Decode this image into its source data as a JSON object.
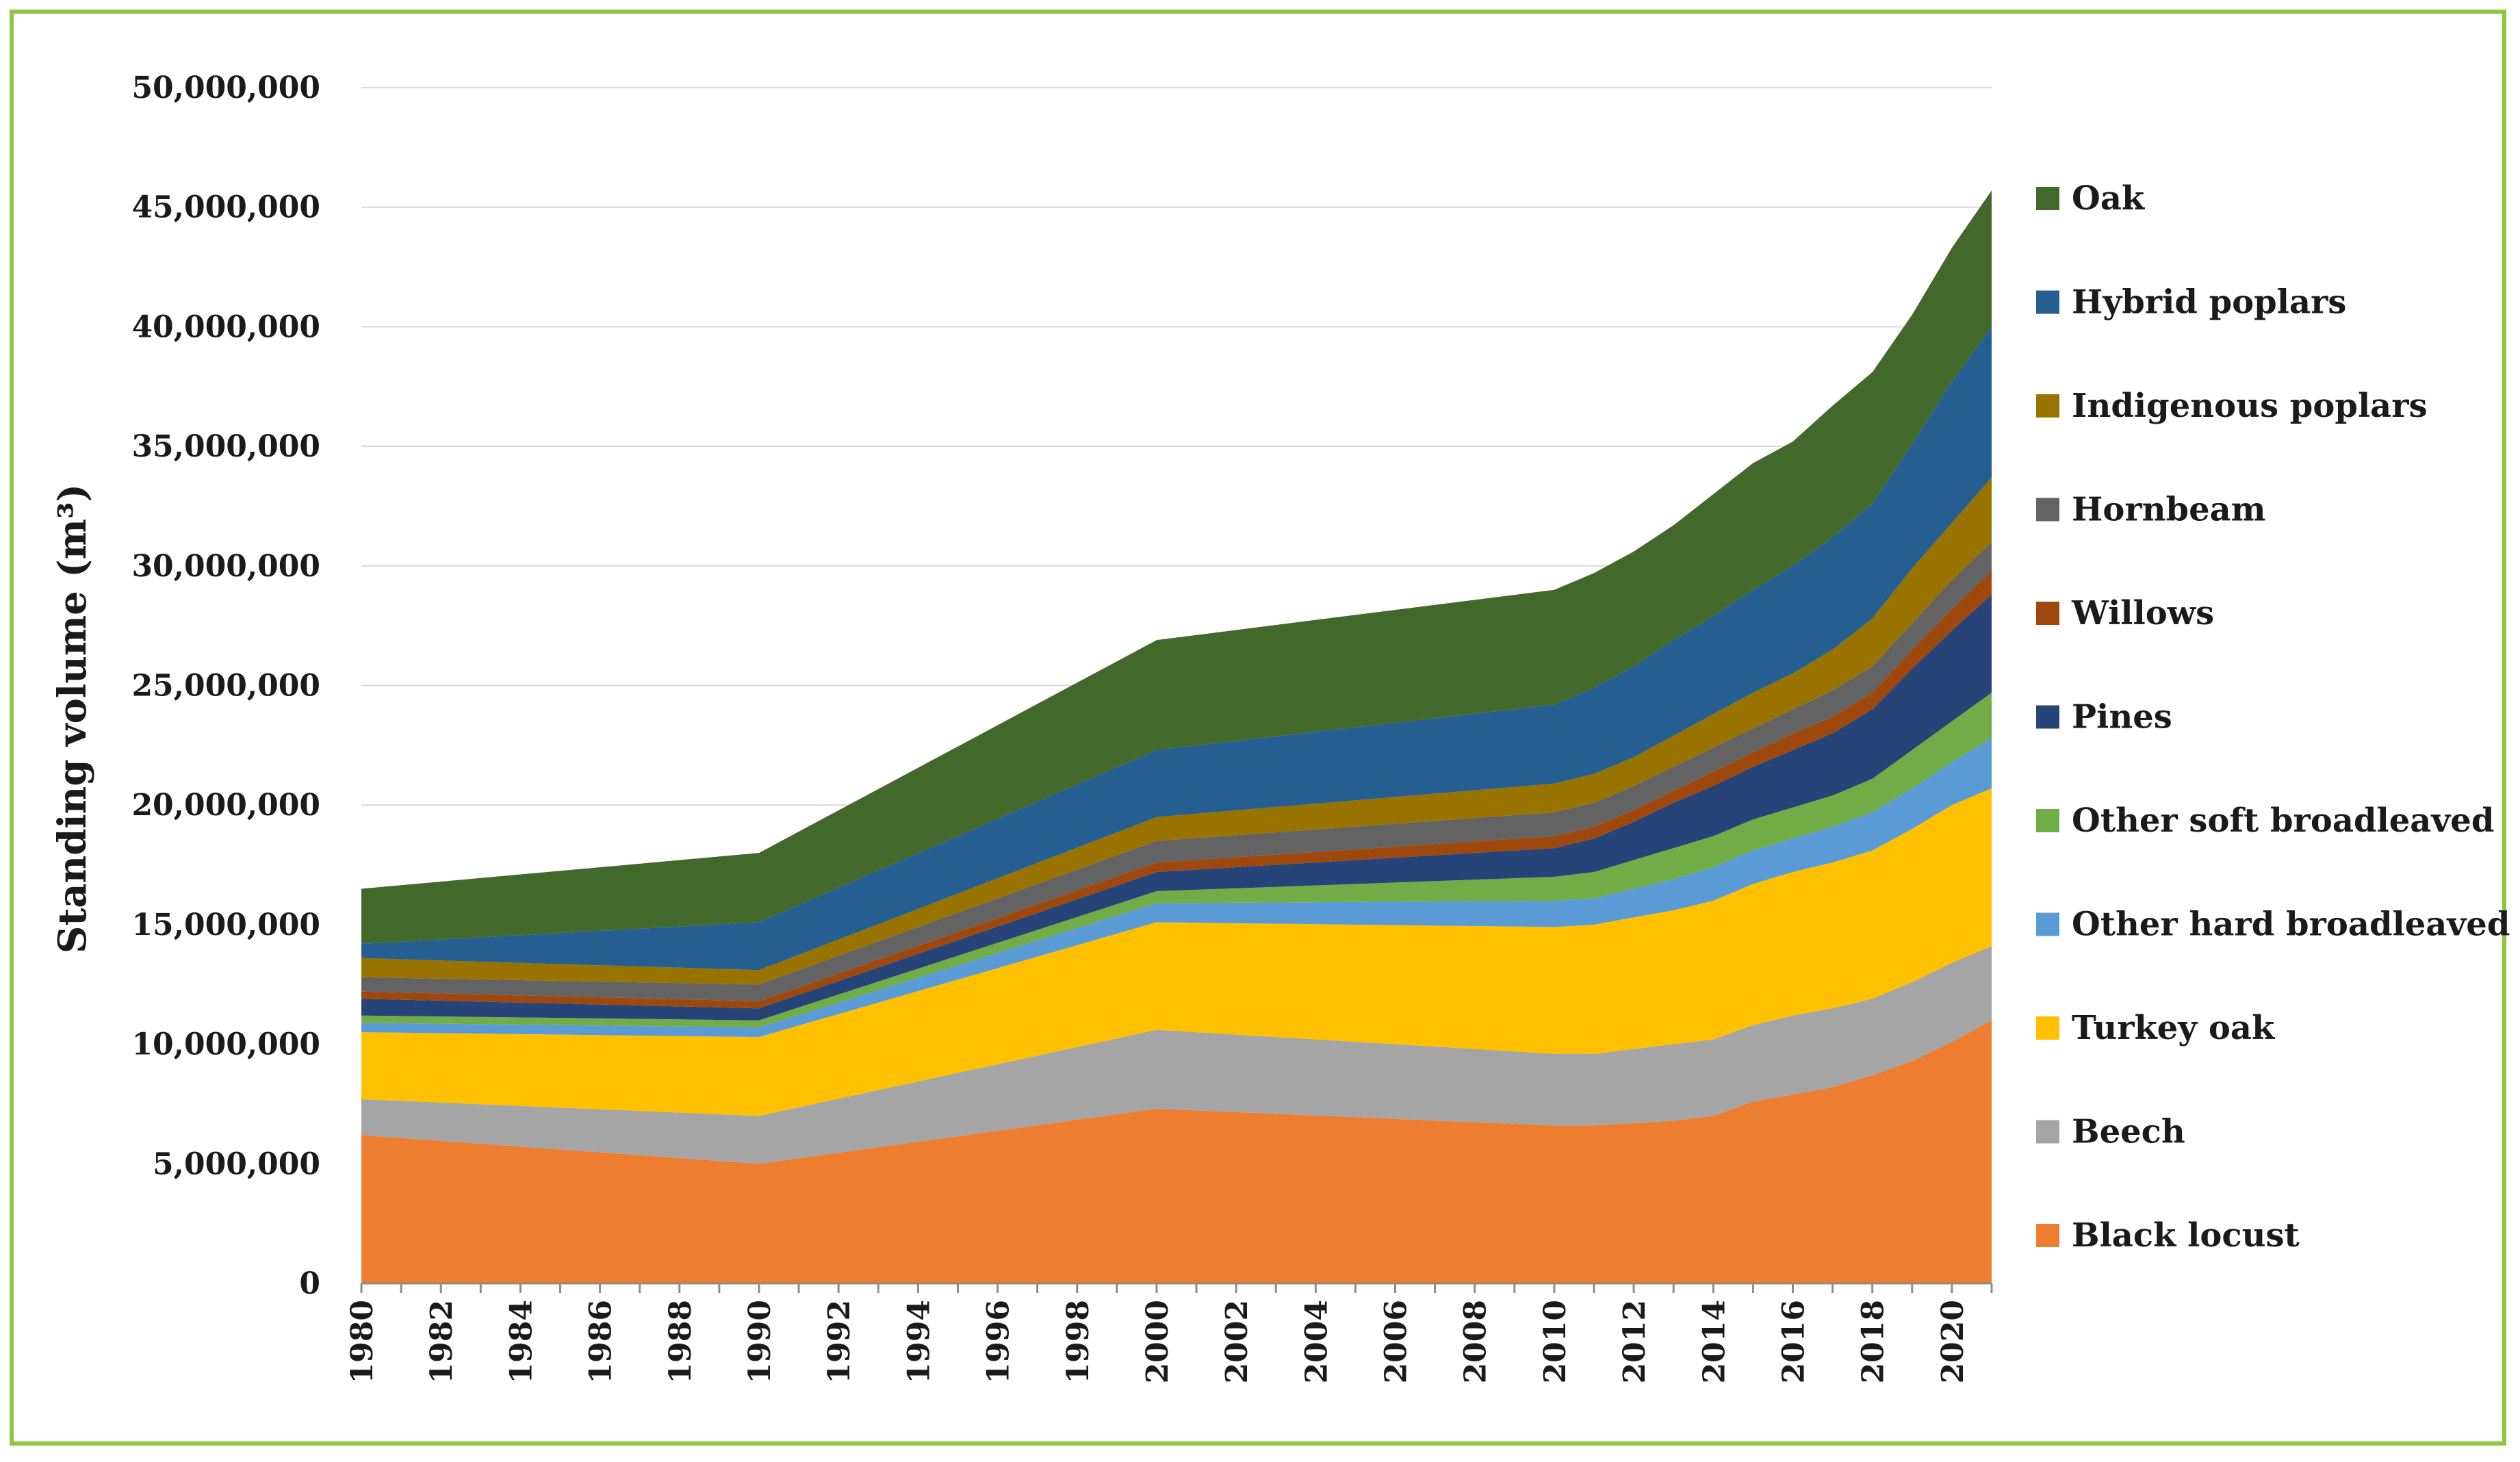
{
  "chart_data": {
    "type": "area",
    "stacked": true,
    "title": "",
    "xlabel": "",
    "ylabel": "Standing volume (m³)",
    "ylim": [
      0,
      50000000
    ],
    "ytick_values": [
      0,
      5000000,
      10000000,
      15000000,
      20000000,
      25000000,
      30000000,
      35000000,
      40000000,
      45000000,
      50000000
    ],
    "ytick_labels": [
      "0",
      "5,000,000",
      "10,000,000",
      "15,000,000",
      "20,000,000",
      "25,000,000",
      "30,000,000",
      "35,000,000",
      "40,000,000",
      "45,000,000",
      "50,000,000"
    ],
    "xtick_labels": [
      "1980",
      "1982",
      "1984",
      "1986",
      "1988",
      "1990",
      "1992",
      "1994",
      "1996",
      "1998",
      "2000",
      "2002",
      "2004",
      "2006",
      "2008",
      "2010",
      "2012",
      "2014",
      "2016",
      "2018",
      "2020"
    ],
    "grid": true,
    "legend_position": "right",
    "x": [
      1980,
      1990,
      2000,
      2010,
      2011,
      2012,
      2013,
      2014,
      2015,
      2016,
      2017,
      2018,
      2019,
      2020,
      2021
    ],
    "series": [
      {
        "name": "Black locust",
        "color": "#ed7d31",
        "values": [
          6200000,
          5000000,
          7300000,
          6600000,
          6600000,
          6700000,
          6800000,
          7000000,
          7600000,
          7900000,
          8200000,
          8700000,
          9300000,
          10100000,
          11000000
        ]
      },
      {
        "name": "Beech",
        "color": "#a5a5a5",
        "values": [
          1500000,
          2000000,
          3300000,
          3000000,
          3000000,
          3100000,
          3200000,
          3200000,
          3200000,
          3300000,
          3300000,
          3200000,
          3300000,
          3300000,
          3100000
        ]
      },
      {
        "name": "Turkey oak",
        "color": "#ffc000",
        "values": [
          2800000,
          3300000,
          4500000,
          5300000,
          5400000,
          5500000,
          5600000,
          5800000,
          5900000,
          6000000,
          6100000,
          6200000,
          6400000,
          6600000,
          6600000
        ]
      },
      {
        "name": "Other hard broadleaved",
        "color": "#5b9bd5",
        "values": [
          400000,
          400000,
          800000,
          1100000,
          1100000,
          1200000,
          1300000,
          1400000,
          1400000,
          1400000,
          1500000,
          1600000,
          1700000,
          1800000,
          2100000
        ]
      },
      {
        "name": "Other soft broadleaved",
        "color": "#70ad47",
        "values": [
          300000,
          300000,
          500000,
          1000000,
          1100000,
          1200000,
          1300000,
          1300000,
          1300000,
          1300000,
          1300000,
          1400000,
          1600000,
          1700000,
          1900000
        ]
      },
      {
        "name": "Pines",
        "color": "#264478",
        "values": [
          700000,
          500000,
          800000,
          1200000,
          1400000,
          1600000,
          1900000,
          2100000,
          2200000,
          2400000,
          2600000,
          2900000,
          3400000,
          3800000,
          4100000
        ]
      },
      {
        "name": "Willows",
        "color": "#9e480e",
        "values": [
          300000,
          300000,
          400000,
          500000,
          500000,
          500000,
          500000,
          600000,
          600000,
          700000,
          700000,
          700000,
          800000,
          900000,
          1000000
        ]
      },
      {
        "name": "Hornbeam",
        "color": "#636363",
        "values": [
          600000,
          700000,
          900000,
          1000000,
          1000000,
          1000000,
          1000000,
          1000000,
          1000000,
          1000000,
          1100000,
          1100000,
          1100000,
          1200000,
          1200000
        ]
      },
      {
        "name": "Indigenous poplars",
        "color": "#997300",
        "values": [
          800000,
          600000,
          1000000,
          1200000,
          1200000,
          1200000,
          1300000,
          1400000,
          1500000,
          1500000,
          1700000,
          2000000,
          2300000,
          2400000,
          2700000
        ]
      },
      {
        "name": "Hybrid poplars",
        "color": "#255e91",
        "values": [
          600000,
          2000000,
          2800000,
          3300000,
          3600000,
          3800000,
          4000000,
          4100000,
          4300000,
          4500000,
          4700000,
          4800000,
          5200000,
          5900000,
          6300000
        ]
      },
      {
        "name": "Oak",
        "color": "#43682b",
        "values": [
          2300000,
          2900000,
          4600000,
          4800000,
          4800000,
          4800000,
          4800000,
          5100000,
          5300000,
          5200000,
          5500000,
          5500000,
          5400000,
          5600000,
          5700000
        ]
      }
    ]
  }
}
